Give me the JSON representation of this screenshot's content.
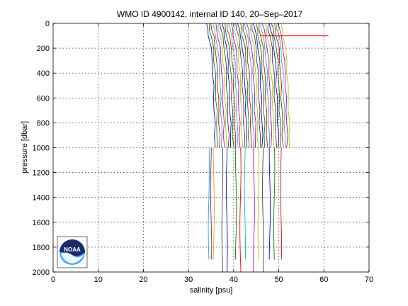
{
  "chart_data": {
    "type": "line",
    "title": "WMO ID 4900142, internal ID 140, 20–Sep–2017",
    "xlabel": "salinity [psu]",
    "ylabel": "pressure [dbar]",
    "xlim": [
      0,
      70
    ],
    "ylim": [
      0,
      2000
    ],
    "y_reversed": true,
    "x_ticks": [
      0,
      10,
      20,
      30,
      40,
      50,
      60,
      70
    ],
    "y_ticks": [
      0,
      200,
      400,
      600,
      800,
      1000,
      1200,
      1400,
      1600,
      1800,
      2000
    ],
    "grid": true,
    "profile_offset_step_psu": 0.5,
    "profile_base_salinity": 34.0,
    "profile_count": 34,
    "profile_shape": {
      "pressure": [
        0,
        50,
        100,
        200,
        300,
        400,
        500,
        600,
        700,
        800,
        900,
        1000
      ],
      "salinity_delta": [
        0,
        0.2,
        0.5,
        1.0,
        1.2,
        1.4,
        1.5,
        1.6,
        1.7,
        1.8,
        1.85,
        1.9
      ]
    },
    "deep_profiles": [
      {
        "x": 34.5,
        "bottom": 1900
      },
      {
        "x": 35.0,
        "bottom": 1900
      },
      {
        "x": 35.6,
        "bottom": 1900
      },
      {
        "x": 37.5,
        "bottom": 2000
      },
      {
        "x": 38.5,
        "bottom": 2000
      },
      {
        "x": 40.5,
        "bottom": 1900
      },
      {
        "x": 41.5,
        "bottom": 2000
      },
      {
        "x": 42.5,
        "bottom": 1900
      },
      {
        "x": 44.5,
        "bottom": 2000
      },
      {
        "x": 45.5,
        "bottom": 1900
      },
      {
        "x": 46.5,
        "bottom": 2000
      },
      {
        "x": 48.0,
        "bottom": 1900
      },
      {
        "x": 49.0,
        "bottom": 1900
      },
      {
        "x": 50.5,
        "bottom": 1900
      }
    ],
    "red_spike": {
      "pressure": 100,
      "x_start": 46.0,
      "x_end": 61.0
    },
    "colors": [
      "#0000ff",
      "#008000",
      "#ff0000",
      "#00bfbf",
      "#bf00bf",
      "#bfbf00",
      "#404040"
    ]
  },
  "logo": {
    "name": "noaa-logo",
    "text": "NOAA",
    "colors": {
      "dark": "#1a2b6b",
      "light": "#3fa9f5",
      "white": "#ffffff"
    }
  }
}
